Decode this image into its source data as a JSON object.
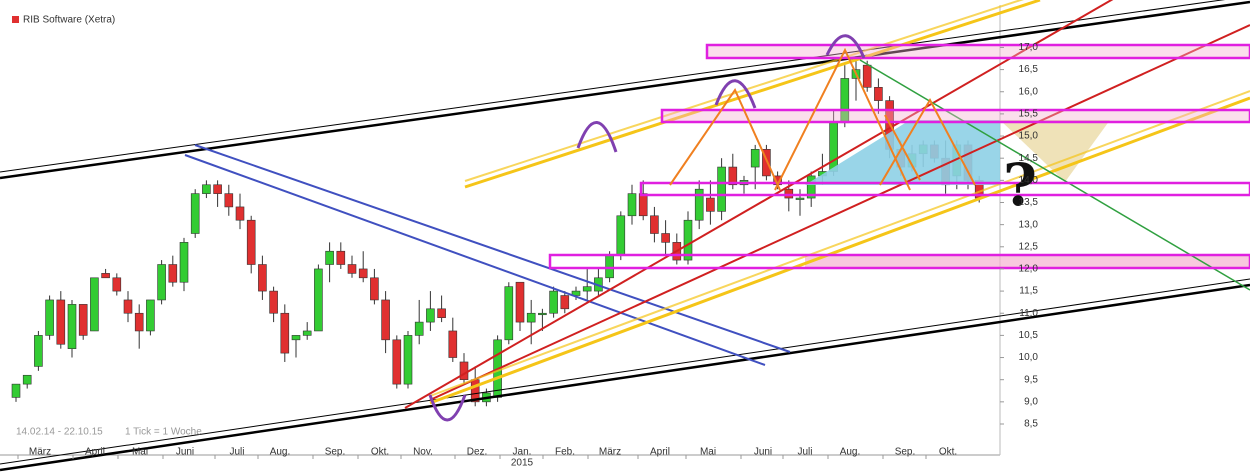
{
  "chart_data": {
    "type": "candlestick",
    "title": "RIB Software (Xetra)",
    "date_range": "14.02.14 - 22.10.15",
    "tick_info": "1 Tick = 1 Woche",
    "annotation": "?",
    "x_labels": [
      "März",
      "April",
      "Mai",
      "Juni",
      "Juli",
      "Aug.",
      "Sep.",
      "Okt.",
      "Nov.",
      "Dez.",
      "Jan.",
      "Feb.",
      "März",
      "April",
      "Mai",
      "Juni",
      "Juli",
      "Aug.",
      "Sep.",
      "Okt."
    ],
    "year_label": "2015",
    "up_color": "#33cc33",
    "down_color": "#e03030",
    "legend_color": "#e03030",
    "open": [
      9.1,
      9.4,
      9.8,
      10.5,
      11.3,
      10.2,
      11.2,
      10.6,
      11.9,
      11.8,
      11.3,
      11.0,
      10.6,
      11.3,
      12.1,
      11.7,
      12.8,
      13.7,
      13.9,
      13.7,
      13.4,
      13.1,
      12.1,
      11.5,
      11.0,
      10.4,
      10.5,
      10.6,
      12.1,
      12.4,
      12.1,
      12.0,
      11.8,
      11.3,
      10.4,
      9.4,
      10.5,
      10.8,
      11.1,
      10.6,
      9.9,
      9.5,
      9.0,
      9.1,
      10.4,
      11.7,
      10.8,
      11.0,
      11.0,
      11.4,
      11.4,
      11.5,
      11.5,
      11.8,
      12.3,
      13.2,
      13.7,
      13.2,
      12.8,
      12.6,
      12.2,
      13.1,
      13.6,
      13.3,
      14.3,
      13.9,
      14.3,
      14.7,
      14.1,
      13.8,
      13.6,
      13.6,
      14.1,
      14.2,
      15.3,
      16.3,
      16.6,
      16.1,
      15.8,
      14.7,
      14.3,
      14.6,
      14.8,
      14.5,
      14.1,
      14.8,
      14.0
    ],
    "high": [
      9.4,
      9.6,
      10.6,
      11.4,
      11.5,
      11.3,
      11.2,
      11.8,
      12.0,
      11.9,
      11.5,
      11.2,
      11.3,
      12.2,
      12.3,
      12.7,
      13.8,
      14.0,
      14.0,
      13.9,
      13.7,
      13.2,
      12.3,
      11.6,
      11.2,
      10.5,
      10.8,
      12.1,
      12.6,
      12.6,
      12.3,
      12.4,
      12.0,
      11.5,
      10.5,
      10.6,
      11.3,
      11.5,
      11.4,
      10.9,
      10.1,
      9.8,
      9.3,
      10.5,
      11.7,
      11.7,
      11.3,
      11.1,
      11.6,
      11.5,
      11.6,
      12.0,
      12.0,
      12.4,
      13.3,
      13.9,
      14.0,
      13.4,
      13.1,
      12.8,
      13.3,
      14.0,
      14.0,
      14.5,
      14.6,
      14.1,
      14.8,
      14.8,
      14.2,
      14.0,
      13.8,
      14.2,
      14.6,
      15.6,
      16.6,
      16.8,
      16.7,
      16.3,
      15.9,
      14.9,
      14.8,
      14.9,
      14.9,
      14.9,
      14.9,
      14.9,
      14.1
    ],
    "low": [
      9.0,
      9.3,
      9.7,
      10.4,
      10.2,
      10.0,
      10.4,
      10.6,
      11.8,
      11.4,
      10.8,
      10.2,
      10.5,
      11.2,
      11.6,
      11.5,
      12.7,
      13.6,
      13.4,
      13.2,
      12.9,
      11.9,
      11.3,
      10.8,
      9.9,
      10.0,
      10.4,
      10.6,
      11.7,
      12.0,
      11.8,
      11.7,
      11.2,
      10.1,
      9.3,
      9.3,
      10.3,
      10.6,
      10.8,
      9.9,
      9.4,
      8.9,
      8.9,
      9.0,
      10.3,
      10.6,
      10.3,
      10.6,
      10.9,
      11.0,
      11.3,
      11.3,
      11.4,
      11.7,
      12.2,
      13.0,
      13.1,
      12.6,
      12.3,
      12.1,
      12.1,
      12.9,
      13.0,
      13.1,
      13.8,
      13.7,
      13.8,
      14.0,
      13.8,
      13.3,
      13.2,
      13.4,
      13.9,
      14.1,
      15.2,
      15.8,
      16.0,
      15.5,
      14.5,
      14.1,
      14.2,
      14.3,
      14.4,
      13.7,
      13.8,
      13.8,
      13.5
    ],
    "close": [
      9.4,
      9.6,
      10.5,
      11.3,
      10.3,
      11.2,
      10.5,
      11.8,
      11.8,
      11.5,
      11.0,
      10.6,
      11.3,
      12.1,
      11.7,
      12.6,
      13.7,
      13.9,
      13.7,
      13.4,
      13.1,
      12.1,
      11.5,
      11.0,
      10.1,
      10.5,
      10.6,
      12.0,
      12.4,
      12.1,
      11.9,
      11.8,
      11.3,
      10.4,
      9.4,
      10.5,
      10.8,
      11.1,
      10.9,
      10.0,
      9.5,
      9.0,
      9.2,
      10.4,
      11.6,
      10.8,
      11.0,
      11.0,
      11.5,
      11.1,
      11.5,
      11.6,
      11.8,
      12.3,
      13.2,
      13.7,
      13.2,
      12.8,
      12.6,
      12.2,
      13.1,
      13.8,
      13.3,
      14.3,
      13.9,
      14.0,
      14.7,
      14.1,
      13.9,
      13.6,
      13.6,
      14.1,
      14.2,
      15.3,
      16.3,
      16.5,
      16.1,
      15.8,
      14.7,
      14.3,
      14.6,
      14.8,
      14.5,
      13.9,
      14.8,
      14.0,
      13.6
    ],
    "ylim": [
      7.8,
      17.8
    ],
    "yticks": [
      {
        "value": 8.5,
        "label": "8,5"
      },
      {
        "value": 9.0,
        "label": "9,0"
      },
      {
        "value": 9.5,
        "label": "9,5"
      },
      {
        "value": 10.0,
        "label": "10,0"
      },
      {
        "value": 10.5,
        "label": "10,5"
      },
      {
        "value": 11.0,
        "label": "11,0"
      },
      {
        "value": 11.5,
        "label": "11,5"
      },
      {
        "value": 12.0,
        "label": "12,0"
      },
      {
        "value": 12.5,
        "label": "12,5"
      },
      {
        "value": 13.0,
        "label": "13,0"
      },
      {
        "value": 13.5,
        "label": "13,5"
      },
      {
        "value": 14.0,
        "label": "14,0"
      },
      {
        "value": 14.5,
        "label": "14,5"
      },
      {
        "value": 15.0,
        "label": "15,0"
      },
      {
        "value": 15.5,
        "label": "15,5"
      },
      {
        "value": 16.0,
        "label": "16,0"
      },
      {
        "value": 16.5,
        "label": "16,5"
      },
      {
        "value": 17.0,
        "label": "17,0"
      }
    ]
  }
}
